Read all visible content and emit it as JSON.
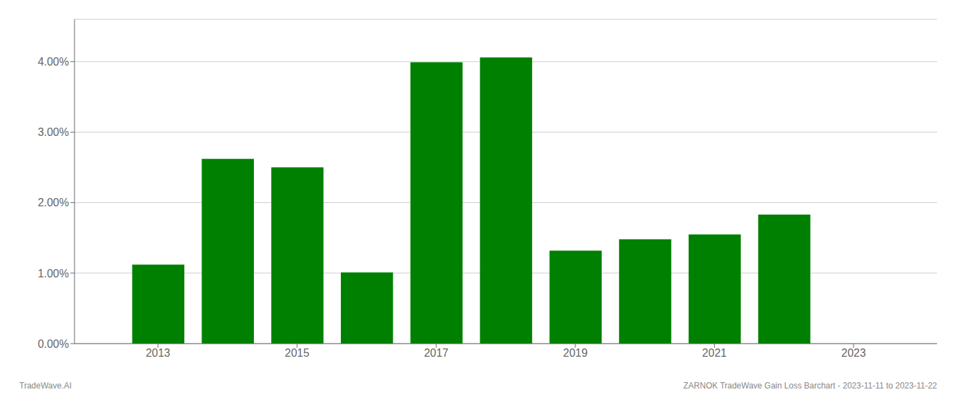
{
  "chart_data": {
    "type": "bar",
    "x": [
      2013,
      2014,
      2015,
      2016,
      2017,
      2018,
      2019,
      2020,
      2021,
      2022
    ],
    "values": [
      0.0112,
      0.0262,
      0.025,
      0.0101,
      0.0399,
      0.0406,
      0.0132,
      0.0148,
      0.0155,
      0.0183
    ],
    "color": "#008000",
    "xlim": [
      2011.8,
      2024.2
    ],
    "xticks": [
      2013,
      2015,
      2017,
      2019,
      2021,
      2023
    ],
    "ylim": [
      0,
      0.046
    ],
    "yticks": [
      {
        "value": 0.0,
        "label": "0.00%"
      },
      {
        "value": 0.01,
        "label": "1.00%"
      },
      {
        "value": 0.02,
        "label": "2.00%"
      },
      {
        "value": 0.03,
        "label": "3.00%"
      },
      {
        "value": 0.04,
        "label": "4.00%"
      }
    ],
    "grid": true,
    "annotations": [
      "TradeWave.AI",
      "ZARNOK TradeWave Gain Loss Barchart - 2023-11-11 to 2023-11-22"
    ]
  }
}
